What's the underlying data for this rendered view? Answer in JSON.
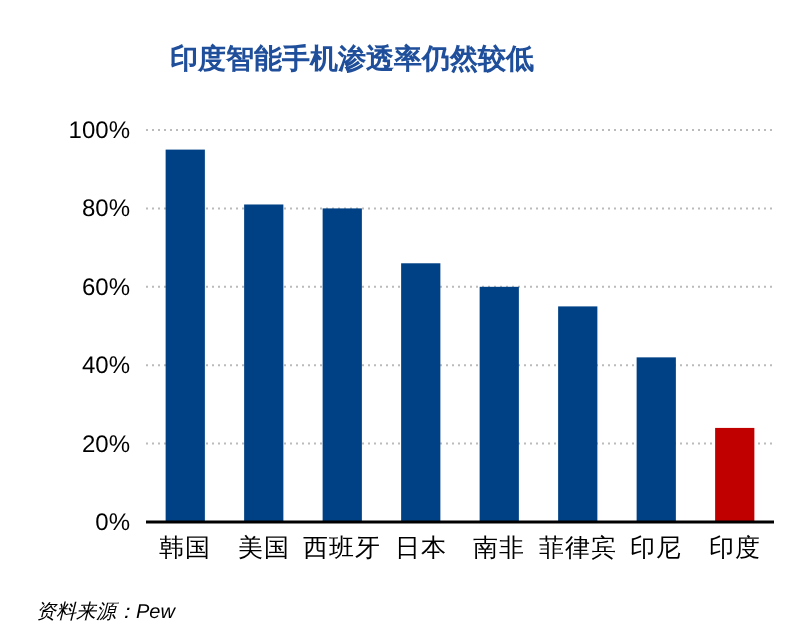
{
  "chart_data": {
    "type": "bar",
    "title": "印度智能手机渗透率仍然较低",
    "categories": [
      "韩国",
      "美国",
      "西班牙",
      "日本",
      "南非",
      "菲律宾",
      "印尼",
      "印度"
    ],
    "values": [
      95,
      81,
      80,
      66,
      60,
      55,
      42,
      24
    ],
    "colors": [
      "#004185",
      "#004185",
      "#004185",
      "#004185",
      "#004185",
      "#004185",
      "#004185",
      "#c00000"
    ],
    "ylim": [
      0,
      100
    ],
    "yticks": [
      {
        "value": 0,
        "label": "0%"
      },
      {
        "value": 20,
        "label": "20%"
      },
      {
        "value": 40,
        "label": "40%"
      },
      {
        "value": 60,
        "label": "60%"
      },
      {
        "value": 80,
        "label": "80%"
      },
      {
        "value": 100,
        "label": "100%"
      }
    ],
    "grid": "y",
    "annotations": [
      "资料来源：Pew"
    ]
  }
}
